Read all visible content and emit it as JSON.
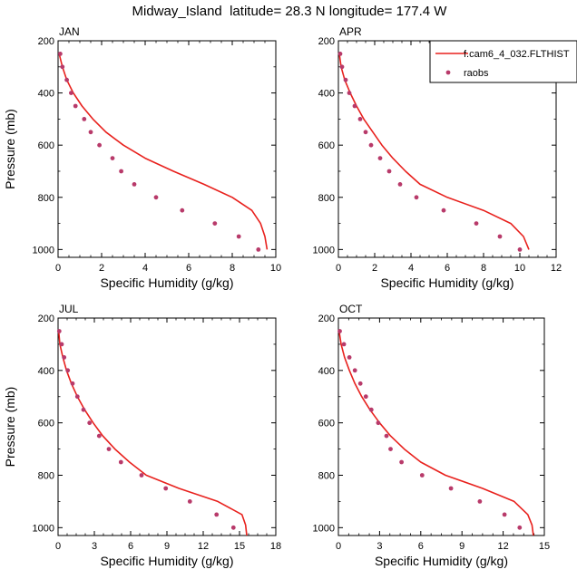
{
  "figure_title": "Midway_Island  latitude= 28.3 N longitude= 177.4 W",
  "legend": {
    "model_label": "f.cam6_4_032.FLTHIST",
    "obs_label": "raobs",
    "model_color": "#e8211d",
    "obs_color": "#b83a6a"
  },
  "chart_data": [
    {
      "type": "line",
      "panel": "JAN",
      "title": "JAN",
      "xlabel": "Specific Humidity (g/kg)",
      "ylabel": "Pressure (mb)",
      "xlim": [
        0,
        10
      ],
      "ylim": [
        200,
        1030
      ],
      "y_inverted": true,
      "x_ticks": [
        "0",
        "2",
        "4",
        "6",
        "8",
        "10"
      ],
      "y_ticks": [
        "200",
        "400",
        "600",
        "800",
        "1000"
      ],
      "model": {
        "name": "f.cam6_4_032.FLTHIST",
        "q": [
          0.05,
          0.2,
          0.4,
          0.7,
          1.1,
          1.6,
          2.2,
          3.0,
          4.0,
          5.3,
          6.7,
          8.0,
          8.9,
          9.3,
          9.5,
          9.6
        ],
        "p": [
          250,
          300,
          350,
          400,
          450,
          500,
          550,
          600,
          650,
          700,
          750,
          800,
          850,
          900,
          950,
          1000
        ]
      },
      "raobs": {
        "name": "raobs",
        "q": [
          0.1,
          0.2,
          0.4,
          0.6,
          0.8,
          1.2,
          1.5,
          1.9,
          2.5,
          2.9,
          3.5,
          4.5,
          5.7,
          7.2,
          8.3,
          9.2
        ],
        "p": [
          250,
          300,
          350,
          400,
          450,
          500,
          550,
          600,
          650,
          700,
          750,
          800,
          850,
          900,
          950,
          1000
        ]
      }
    },
    {
      "type": "line",
      "panel": "APR",
      "title": "APR",
      "xlabel": "Specific Humidity (g/kg)",
      "ylabel": "Pressure (mb)",
      "xlim": [
        0,
        12
      ],
      "ylim": [
        200,
        1030
      ],
      "y_inverted": true,
      "x_ticks": [
        "0",
        "2",
        "4",
        "6",
        "8",
        "10",
        "12"
      ],
      "y_ticks": [
        "200",
        "400",
        "600",
        "800",
        "1000"
      ],
      "model": {
        "name": "f.cam6_4_032.FLTHIST",
        "q": [
          0.05,
          0.15,
          0.35,
          0.65,
          1.0,
          1.4,
          1.9,
          2.4,
          3.0,
          3.7,
          4.5,
          6.0,
          8.0,
          9.5,
          10.2,
          10.5
        ],
        "p": [
          250,
          300,
          350,
          400,
          450,
          500,
          550,
          600,
          650,
          700,
          750,
          800,
          850,
          900,
          950,
          1000
        ]
      },
      "raobs": {
        "name": "raobs",
        "q": [
          0.1,
          0.2,
          0.4,
          0.6,
          0.9,
          1.2,
          1.5,
          1.8,
          2.3,
          2.8,
          3.4,
          4.3,
          5.8,
          7.6,
          8.9,
          10.0
        ],
        "p": [
          250,
          300,
          350,
          400,
          450,
          500,
          550,
          600,
          650,
          700,
          750,
          800,
          850,
          900,
          950,
          1000
        ]
      }
    },
    {
      "type": "line",
      "panel": "JUL",
      "title": "JUL",
      "xlabel": "Specific Humidity (g/kg)",
      "ylabel": "Pressure (mb)",
      "xlim": [
        0,
        18
      ],
      "ylim": [
        200,
        1030
      ],
      "y_inverted": true,
      "x_ticks": [
        "0",
        "3",
        "6",
        "9",
        "12",
        "15",
        "18"
      ],
      "y_ticks": [
        "200",
        "400",
        "600",
        "800",
        "1000"
      ],
      "model": {
        "name": "f.cam6_4_032.FLTHIST",
        "q": [
          0.05,
          0.15,
          0.4,
          0.7,
          1.1,
          1.6,
          2.2,
          2.9,
          3.7,
          4.7,
          5.9,
          7.3,
          10.0,
          13.2,
          15.2,
          15.5,
          15.6
        ],
        "p": [
          250,
          300,
          350,
          400,
          450,
          500,
          550,
          600,
          650,
          700,
          750,
          800,
          850,
          900,
          950,
          990,
          1030
        ]
      },
      "raobs": {
        "name": "raobs",
        "q": [
          0.1,
          0.3,
          0.5,
          0.8,
          1.2,
          1.6,
          2.1,
          2.6,
          3.4,
          4.2,
          5.2,
          6.9,
          8.9,
          10.9,
          13.1,
          14.5
        ],
        "p": [
          250,
          300,
          350,
          400,
          450,
          500,
          550,
          600,
          650,
          700,
          750,
          800,
          850,
          900,
          950,
          1000
        ]
      }
    },
    {
      "type": "line",
      "panel": "OCT",
      "title": "OCT",
      "xlabel": "Specific Humidity (g/kg)",
      "ylabel": "Pressure (mb)",
      "xlim": [
        0,
        15
      ],
      "ylim": [
        200,
        1030
      ],
      "y_inverted": true,
      "x_ticks": [
        "0",
        "3",
        "6",
        "9",
        "12",
        "15"
      ],
      "y_ticks": [
        "200",
        "400",
        "600",
        "800",
        "1000"
      ],
      "model": {
        "name": "f.cam6_4_032.FLTHIST",
        "q": [
          0.05,
          0.2,
          0.45,
          0.8,
          1.2,
          1.7,
          2.3,
          3.0,
          3.8,
          4.8,
          6.0,
          7.8,
          10.5,
          12.8,
          13.8,
          14.1,
          14.2
        ],
        "p": [
          250,
          300,
          350,
          400,
          450,
          500,
          550,
          600,
          650,
          700,
          750,
          800,
          850,
          900,
          950,
          990,
          1030
        ]
      },
      "raobs": {
        "name": "raobs",
        "q": [
          0.1,
          0.4,
          0.8,
          1.2,
          1.6,
          2.0,
          2.4,
          2.9,
          3.5,
          3.8,
          4.6,
          6.1,
          8.2,
          10.3,
          12.1,
          13.2
        ],
        "p": [
          250,
          300,
          350,
          400,
          450,
          500,
          550,
          600,
          650,
          700,
          750,
          800,
          850,
          900,
          950,
          1000
        ]
      }
    }
  ]
}
